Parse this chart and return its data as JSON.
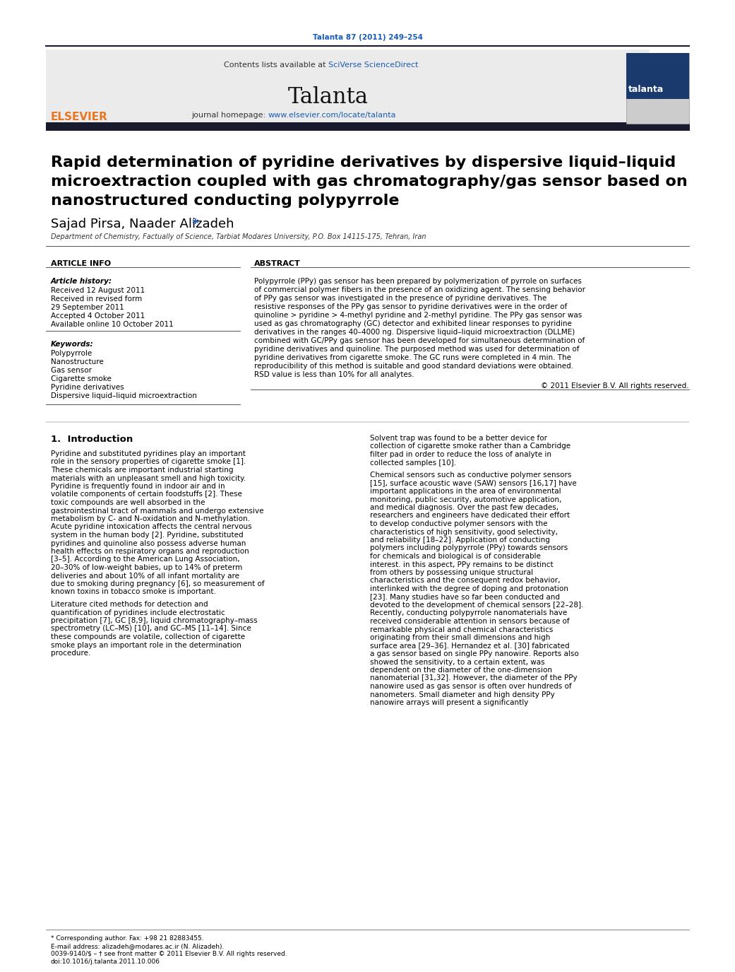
{
  "journal_citation": "Talanta 87 (2011) 249–254",
  "journal_name": "Talanta",
  "contents_line": "Contents lists available at SciVerse ScienceDirect",
  "homepage_line": "journal homepage: www.elsevier.com/locate/talanta",
  "title_line1": "Rapid determination of pyridine derivatives by dispersive liquid–liquid",
  "title_line2": "microextraction coupled with gas chromatography/gas sensor based on",
  "title_line3": "nanostructured conducting polypyrrole",
  "authors": "Sajad Pirsa, Naader Alizadeh*",
  "affiliation": "Department of Chemistry, Factually of Science, Tarbiat Modares University, P.O. Box 14115-175, Tehran, Iran",
  "article_info_header": "ARTICLE INFO",
  "abstract_header": "ABSTRACT",
  "article_history_label": "Article history:",
  "received1": "Received 12 August 2011",
  "received2": "Received in revised form",
  "received2b": "29 September 2011",
  "accepted": "Accepted 4 October 2011",
  "available": "Available online 10 October 2011",
  "keywords_label": "Keywords:",
  "keywords": [
    "Polypyrrole",
    "Nanostructure",
    "Gas sensor",
    "Cigarette smoke",
    "Pyridine derivatives",
    "Dispersive liquid–liquid microextraction"
  ],
  "abstract_text": "Polypyrrole (PPy) gas sensor has been prepared by polymerization of pyrrole on surfaces of commercial polymer fibers in the presence of an oxidizing agent. The sensing behavior of PPy gas sensor was investigated in the presence of pyridine derivatives. The resistive responses of the PPy gas sensor to pyridine derivatives were in the order of quinoline > pyridine > 4-methyl pyridine and 2-methyl pyridine. The PPy gas sensor was used as gas chromatography (GC) detector and exhibited linear responses to pyridine derivatives in the ranges 40–4000 ng. Dispersive liquid–liquid microextraction (DLLME) combined with GC/PPy gas sensor has been developed for simultaneous determination of pyridine derivatives and quinoline. The purposed method was used for determination of pyridine derivatives from cigarette smoke. The GC runs were completed in 4 min. The reproducibility of this method is suitable and good standard deviations were obtained. RSD value is less than 10% for all analytes.",
  "copyright": "© 2011 Elsevier B.V. All rights reserved.",
  "intro_header": "1.  Introduction",
  "intro_col1_p1": "Pyridine and substituted pyridines play an important role in the sensory properties of cigarette smoke [1]. These chemicals are important industrial starting materials with an unpleasant smell and high toxicity. Pyridine is frequently found in indoor air and in volatile components of certain foodstuffs [2]. These toxic compounds are well absorbed in the gastrointestinal tract of mammals and undergo extensive metabolism by C- and N-oxidation and N-methylation. Acute pyridine intoxication affects the central nervous system in the human body [2]. Pyridine, substituted pyridines and quinoline also possess adverse human health effects on respiratory organs and reproduction [3–5]. According to the American Lung Association, 20–30% of low-weight babies, up to 14% of preterm deliveries and about 10% of all infant mortality are due to smoking during pregnancy [6], so measurement of known toxins in tobacco smoke is important.",
  "intro_col1_p2": "Literature cited methods for detection and quantification of pyridines include electrostatic precipitation [7], GC [8,9], liquid chromatography–mass spectrometry (LC–MS) [10], and GC–MS [11–14]. Since these compounds are volatile, collection of cigarette smoke plays an important role in the determination procedure.",
  "intro_col2_p1": "Solvent trap was found to be a better device for collection of cigarette smoke rather than a Cambridge filter pad in order to reduce the loss of analyte in collected samples [10].",
  "intro_col2_p2": "Chemical sensors such as conductive polymer sensors [15], surface acoustic wave (SAW) sensors [16,17] have important applications in the area of environmental monitoring, public security, automotive application, and medical diagnosis. Over the past few decades, researchers and engineers have dedicated their effort to develop conductive polymer sensors with the characteristics of high sensitivity, good selectivity, and reliability [18–22]. Application of conducting polymers including polypyrrole (PPy) towards sensors for chemicals and biological is of considerable interest. in this aspect, PPy remains to be distinct from others by possessing unique structural characteristics and the consequent redox behavior, interlinked with the degree of doping and protonation [23]. Many studies have so far been conducted and devoted to the development of chemical sensors [22–28]. Recently, conducting polypyrrole nanomaterials have received considerable attention in sensors because of remarkable physical and chemical characteristics originating from their small dimensions and high surface area [29–36]. Hernandez et al. [30] fabricated a gas sensor based on single PPy nanowire. Reports also showed the sensitivity, to a certain extent, was dependent on the diameter of the one-dimension nanomaterial [31,32]. However, the diameter of the PPy nanowire used as gas sensor is often over hundreds of nanometers. Small diameter and high density PPy nanowire arrays will present a significantly",
  "footnote1": "* Corresponding author. Fax: +98 21 82883455.",
  "footnote2": "E-mail address: alizadeh@modares.ac.ir (N. Alizadeh).",
  "footnote3": "† see front matter © 2011 Elsevier B.V. All rights reserved.",
  "footnote4": "doi:10.1016/j.talanta.2011.10.006",
  "bg_color": "#ffffff",
  "header_bg": "#e8e8e8",
  "dark_bar_color": "#1a1a2e",
  "citation_color": "#1a5cb5",
  "link_color": "#1a5cb5",
  "title_color": "#000000",
  "section_header_color": "#000000"
}
